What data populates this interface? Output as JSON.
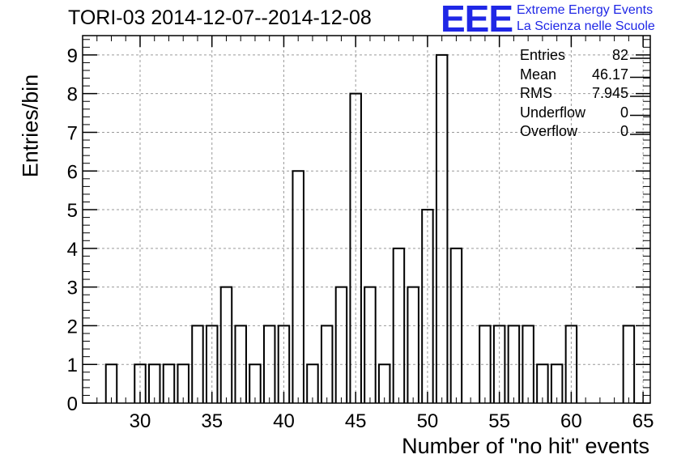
{
  "title": "TORI-03 2014-12-07--2014-12-08",
  "logo": {
    "mark": "EEE",
    "line1": "Extreme Energy Events",
    "line2": "La Scienza nelle Scuole",
    "color": "#1f27e6"
  },
  "stats_box": [
    {
      "name": "Entries",
      "value": "82"
    },
    {
      "name": "Mean",
      "value": "46.17"
    },
    {
      "name": "RMS",
      "value": "7.945"
    },
    {
      "name": "Underflow",
      "value": "0"
    },
    {
      "name": "Overflow",
      "value": "0"
    }
  ],
  "chart_data": {
    "type": "bar",
    "style": "histogram",
    "title": "TORI-03 2014-12-07--2014-12-08",
    "xlabel": "Number of \"no hit\" events",
    "ylabel": "Entries/bin",
    "xlim": [
      26,
      65.5
    ],
    "ylim": [
      0,
      9.5
    ],
    "xticks": [
      "30",
      "35",
      "40",
      "45",
      "50",
      "55",
      "60",
      "65"
    ],
    "yticks": [
      "0",
      "1",
      "2",
      "3",
      "4",
      "5",
      "6",
      "7",
      "8",
      "9"
    ],
    "grid": true,
    "bins": [
      28,
      30,
      31,
      32,
      33,
      34,
      35,
      36,
      37,
      38,
      39,
      40,
      41,
      42,
      43,
      44,
      45,
      46,
      47,
      48,
      49,
      50,
      51,
      52,
      54,
      55,
      56,
      57,
      58,
      59,
      60,
      64
    ],
    "values": [
      1,
      1,
      1,
      1,
      1,
      2,
      2,
      3,
      2,
      1,
      2,
      2,
      6,
      1,
      2,
      3,
      8,
      3,
      1,
      4,
      3,
      5,
      9,
      4,
      2,
      2,
      2,
      2,
      1,
      1,
      2,
      2
    ]
  }
}
